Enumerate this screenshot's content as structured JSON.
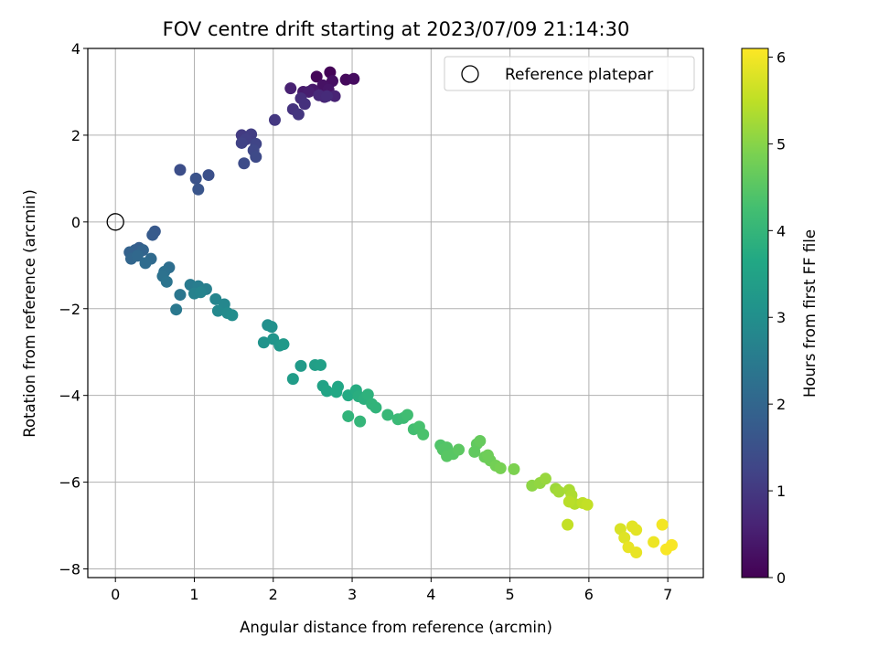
{
  "chart_data": {
    "type": "scatter",
    "title": "FOV centre drift starting at 2023/07/09 21:14:30",
    "xlabel": "Angular distance from reference (arcmin)",
    "ylabel": "Rotation from reference (arcmin)",
    "xlim": [
      -0.35,
      7.45
    ],
    "ylim": [
      -8.2,
      4.0
    ],
    "x_ticks": [
      0,
      1,
      2,
      3,
      4,
      5,
      6,
      7
    ],
    "y_ticks": [
      -8,
      -6,
      -4,
      -2,
      0,
      2,
      4
    ],
    "grid": true,
    "legend": {
      "position": "top-right",
      "entries": [
        "Reference platepar"
      ]
    },
    "reference_point": {
      "name": "Reference platepar",
      "x": 0,
      "y": 0
    },
    "colorbar": {
      "label": "Hours from first FF file",
      "range": [
        0,
        6.1
      ],
      "ticks": [
        0,
        1,
        2,
        3,
        4,
        5,
        6
      ],
      "colormap": "viridis"
    },
    "points": [
      [
        2.72,
        3.45,
        0.05
      ],
      [
        2.55,
        3.35,
        0.1
      ],
      [
        2.92,
        3.28,
        0.15
      ],
      [
        3.02,
        3.3,
        0.2
      ],
      [
        2.75,
        3.25,
        0.25
      ],
      [
        2.63,
        3.15,
        0.3
      ],
      [
        2.7,
        3.05,
        0.35
      ],
      [
        2.5,
        3.05,
        0.4
      ],
      [
        2.38,
        3.0,
        0.45
      ],
      [
        2.45,
        3.0,
        0.5
      ],
      [
        2.22,
        3.08,
        0.55
      ],
      [
        2.78,
        2.9,
        0.6
      ],
      [
        2.65,
        2.88,
        0.65
      ],
      [
        2.58,
        2.92,
        0.7
      ],
      [
        2.68,
        2.9,
        0.75
      ],
      [
        2.35,
        2.85,
        0.8
      ],
      [
        2.4,
        2.72,
        0.85
      ],
      [
        2.25,
        2.6,
        0.9
      ],
      [
        2.32,
        2.48,
        0.95
      ],
      [
        2.02,
        2.35,
        1.0
      ],
      [
        1.6,
        2.0,
        1.05
      ],
      [
        1.72,
        2.02,
        1.1
      ],
      [
        1.65,
        1.9,
        1.15
      ],
      [
        1.6,
        1.82,
        1.2
      ],
      [
        1.78,
        1.8,
        1.25
      ],
      [
        1.75,
        1.65,
        1.3
      ],
      [
        1.78,
        1.5,
        1.35
      ],
      [
        1.63,
        1.35,
        1.4
      ],
      [
        0.82,
        1.2,
        1.45
      ],
      [
        1.18,
        1.08,
        1.5
      ],
      [
        1.02,
        1.0,
        1.55
      ],
      [
        1.05,
        0.75,
        1.6
      ],
      [
        0.5,
        -0.22,
        1.7
      ],
      [
        0.47,
        -0.3,
        1.75
      ],
      [
        0.3,
        -0.6,
        1.8
      ],
      [
        0.25,
        -0.65,
        1.85
      ],
      [
        0.18,
        -0.7,
        1.9
      ],
      [
        0.35,
        -0.65,
        1.95
      ],
      [
        0.2,
        -0.85,
        2.0
      ],
      [
        0.28,
        -0.78,
        2.05
      ],
      [
        0.45,
        -0.85,
        2.1
      ],
      [
        0.38,
        -0.95,
        2.15
      ],
      [
        0.68,
        -1.05,
        2.2
      ],
      [
        0.62,
        -1.15,
        2.25
      ],
      [
        0.6,
        -1.25,
        2.3
      ],
      [
        0.65,
        -1.38,
        2.35
      ],
      [
        0.82,
        -1.68,
        2.4
      ],
      [
        0.77,
        -2.02,
        2.45
      ],
      [
        0.95,
        -1.45,
        2.5
      ],
      [
        1.05,
        -1.48,
        2.55
      ],
      [
        1.15,
        -1.55,
        2.6
      ],
      [
        1.0,
        -1.65,
        2.65
      ],
      [
        1.08,
        -1.62,
        2.7
      ],
      [
        1.27,
        -1.78,
        2.75
      ],
      [
        1.38,
        -1.9,
        2.8
      ],
      [
        1.3,
        -2.05,
        2.85
      ],
      [
        1.42,
        -2.1,
        2.9
      ],
      [
        1.48,
        -2.15,
        2.95
      ],
      [
        1.93,
        -2.38,
        3.0
      ],
      [
        1.98,
        -2.42,
        3.05
      ],
      [
        1.88,
        -2.78,
        3.1
      ],
      [
        2.0,
        -2.7,
        3.15
      ],
      [
        2.08,
        -2.85,
        3.2
      ],
      [
        2.13,
        -2.82,
        3.25
      ],
      [
        2.35,
        -3.32,
        3.3
      ],
      [
        2.25,
        -3.62,
        3.35
      ],
      [
        2.53,
        -3.3,
        3.4
      ],
      [
        2.6,
        -3.3,
        3.45
      ],
      [
        2.63,
        -3.78,
        3.5
      ],
      [
        2.68,
        -3.9,
        3.55
      ],
      [
        2.82,
        -3.8,
        3.6
      ],
      [
        2.8,
        -3.92,
        3.65
      ],
      [
        2.95,
        -4.0,
        3.7
      ],
      [
        3.05,
        -3.88,
        3.75
      ],
      [
        3.08,
        -4.02,
        3.8
      ],
      [
        3.15,
        -4.08,
        3.85
      ],
      [
        3.2,
        -3.98,
        3.9
      ],
      [
        3.25,
        -4.2,
        3.95
      ],
      [
        3.3,
        -4.28,
        3.95
      ],
      [
        2.95,
        -4.48,
        3.95
      ],
      [
        3.1,
        -4.6,
        4.0
      ],
      [
        3.45,
        -4.45,
        4.05
      ],
      [
        3.58,
        -4.55,
        4.1
      ],
      [
        3.65,
        -4.52,
        4.15
      ],
      [
        3.7,
        -4.45,
        4.2
      ],
      [
        3.78,
        -4.78,
        4.25
      ],
      [
        3.85,
        -4.72,
        4.3
      ],
      [
        3.9,
        -4.9,
        4.35
      ],
      [
        4.12,
        -5.15,
        4.4
      ],
      [
        4.15,
        -5.25,
        4.45
      ],
      [
        4.2,
        -5.2,
        4.45
      ],
      [
        4.2,
        -5.4,
        4.5
      ],
      [
        4.28,
        -5.35,
        4.5
      ],
      [
        4.35,
        -5.25,
        4.55
      ],
      [
        4.55,
        -5.3,
        4.6
      ],
      [
        4.58,
        -5.12,
        4.6
      ],
      [
        4.62,
        -5.05,
        4.65
      ],
      [
        4.68,
        -5.42,
        4.7
      ],
      [
        4.75,
        -5.5,
        4.75
      ],
      [
        4.72,
        -5.38,
        4.75
      ],
      [
        4.82,
        -5.62,
        4.8
      ],
      [
        4.88,
        -5.68,
        4.85
      ],
      [
        5.05,
        -5.7,
        4.9
      ],
      [
        5.28,
        -6.08,
        5.05
      ],
      [
        5.38,
        -6.02,
        5.1
      ],
      [
        5.45,
        -5.92,
        5.15
      ],
      [
        5.58,
        -6.15,
        5.2
      ],
      [
        5.62,
        -6.22,
        5.25
      ],
      [
        5.75,
        -6.18,
        5.3
      ],
      [
        5.78,
        -6.3,
        5.35
      ],
      [
        5.82,
        -6.5,
        5.4
      ],
      [
        5.75,
        -6.45,
        5.45
      ],
      [
        5.92,
        -6.48,
        5.5
      ],
      [
        5.98,
        -6.52,
        5.55
      ],
      [
        5.73,
        -6.98,
        5.55
      ],
      [
        6.4,
        -7.08,
        5.75
      ],
      [
        6.45,
        -7.28,
        5.8
      ],
      [
        6.55,
        -7.02,
        5.85
      ],
      [
        6.6,
        -7.1,
        5.85
      ],
      [
        6.5,
        -7.5,
        5.9
      ],
      [
        6.6,
        -7.62,
        5.9
      ],
      [
        6.82,
        -7.38,
        5.95
      ],
      [
        6.93,
        -6.98,
        6.0
      ],
      [
        6.98,
        -7.55,
        6.05
      ],
      [
        7.05,
        -7.45,
        6.05
      ]
    ]
  }
}
